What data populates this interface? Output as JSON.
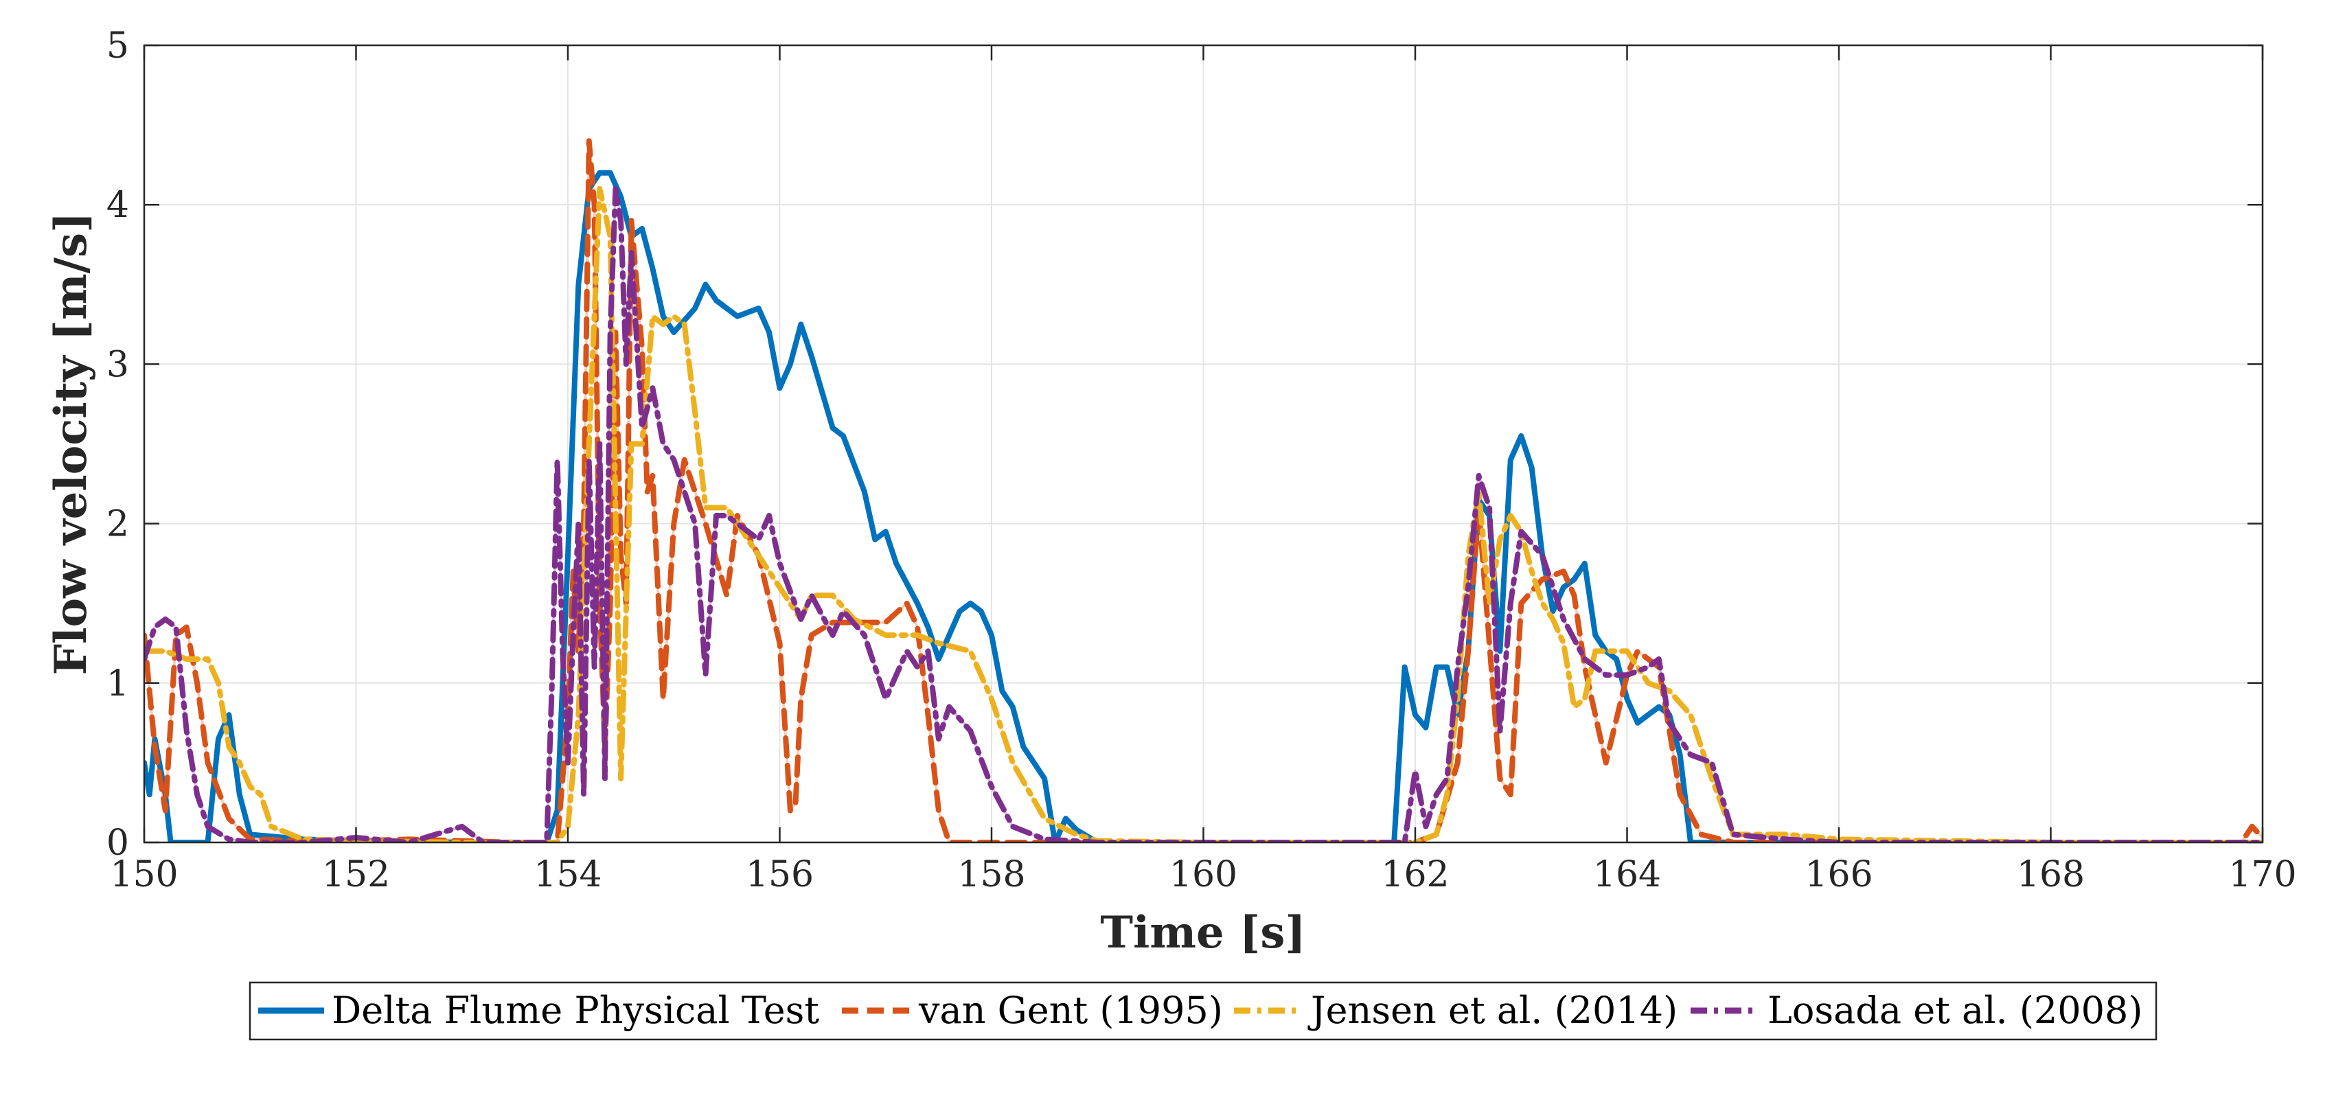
{
  "chart_data": {
    "type": "line",
    "title": "",
    "xlabel": "Time [s]",
    "ylabel": "Flow velocity [m/s]",
    "xlim": [
      150,
      170
    ],
    "ylim": [
      0,
      5
    ],
    "xticks": [
      150,
      152,
      154,
      156,
      158,
      160,
      162,
      164,
      166,
      168,
      170
    ],
    "yticks": [
      0,
      1,
      2,
      3,
      4,
      5
    ],
    "grid": true,
    "legend_position": "bottom-outside",
    "series": [
      {
        "name": "Delta Flume Physical Test",
        "color": "#0072BD",
        "dash": "solid",
        "x": [
          150.0,
          150.05,
          150.1,
          150.2,
          150.25,
          150.3,
          150.6,
          150.7,
          150.8,
          150.9,
          151.0,
          151.5,
          152.0,
          153.0,
          153.8,
          153.9,
          154.0,
          154.1,
          154.2,
          154.3,
          154.4,
          154.5,
          154.6,
          154.7,
          154.8,
          154.9,
          155.0,
          155.2,
          155.3,
          155.4,
          155.6,
          155.8,
          155.9,
          156.0,
          156.1,
          156.2,
          156.3,
          156.5,
          156.6,
          156.8,
          156.9,
          157.0,
          157.1,
          157.3,
          157.4,
          157.5,
          157.6,
          157.7,
          157.8,
          157.9,
          158.0,
          158.1,
          158.2,
          158.3,
          158.5,
          158.6,
          158.7,
          158.8,
          159.0,
          160.0,
          161.0,
          161.8,
          161.9,
          162.0,
          162.1,
          162.2,
          162.3,
          162.4,
          162.5,
          162.6,
          162.7,
          162.8,
          162.9,
          163.0,
          163.1,
          163.2,
          163.3,
          163.4,
          163.5,
          163.6,
          163.7,
          163.8,
          163.9,
          164.0,
          164.1,
          164.2,
          164.3,
          164.4,
          164.5,
          164.6,
          164.7,
          164.8,
          165.0,
          166.0,
          168.0,
          170.0
        ],
        "y": [
          0.5,
          0.3,
          0.65,
          0.3,
          0.0,
          0.0,
          0.0,
          0.65,
          0.8,
          0.3,
          0.05,
          0.02,
          0.01,
          0.0,
          0.0,
          0.2,
          1.8,
          3.5,
          4.1,
          4.2,
          4.2,
          4.05,
          3.8,
          3.85,
          3.6,
          3.3,
          3.2,
          3.35,
          3.5,
          3.4,
          3.3,
          3.35,
          3.2,
          2.85,
          3.0,
          3.25,
          3.05,
          2.6,
          2.55,
          2.2,
          1.9,
          1.95,
          1.75,
          1.5,
          1.35,
          1.15,
          1.3,
          1.45,
          1.5,
          1.45,
          1.3,
          0.95,
          0.85,
          0.6,
          0.4,
          0.0,
          0.15,
          0.08,
          0.0,
          0.0,
          0.0,
          0.0,
          1.1,
          0.8,
          0.72,
          1.1,
          1.1,
          0.8,
          1.2,
          2.15,
          2.05,
          1.2,
          2.4,
          2.55,
          2.35,
          1.8,
          1.45,
          1.6,
          1.65,
          1.75,
          1.3,
          1.2,
          1.15,
          0.9,
          0.75,
          0.8,
          0.85,
          0.8,
          0.55,
          0.0,
          0.0,
          0.0,
          0.0,
          0.0,
          0.0,
          0.0
        ]
      },
      {
        "name": "van Gent (1995)",
        "color": "#D95319",
        "dash": "dash",
        "x": [
          150.0,
          150.1,
          150.2,
          150.3,
          150.4,
          150.5,
          150.6,
          150.8,
          151.0,
          151.5,
          152.0,
          152.5,
          153.0,
          153.5,
          153.9,
          154.0,
          154.05,
          154.1,
          154.15,
          154.2,
          154.25,
          154.3,
          154.35,
          154.4,
          154.45,
          154.5,
          154.55,
          154.6,
          154.7,
          154.75,
          154.8,
          154.9,
          155.0,
          155.1,
          155.2,
          155.3,
          155.5,
          155.6,
          155.8,
          156.0,
          156.1,
          156.15,
          156.2,
          156.3,
          156.5,
          156.8,
          157.0,
          157.2,
          157.3,
          157.4,
          157.5,
          157.6,
          157.8,
          158.0,
          158.5,
          159.0,
          160.0,
          161.0,
          162.0,
          162.2,
          162.4,
          162.5,
          162.6,
          162.8,
          162.9,
          163.0,
          163.2,
          163.4,
          163.5,
          163.6,
          163.8,
          164.0,
          164.1,
          164.3,
          164.5,
          164.7,
          165.0,
          166.0,
          168.0,
          169.0,
          169.8,
          169.9,
          170.0
        ],
        "y": [
          1.3,
          0.6,
          0.2,
          1.3,
          1.35,
          1.0,
          0.5,
          0.15,
          0.02,
          0.01,
          0.01,
          0.02,
          0.01,
          0.0,
          0.0,
          0.8,
          1.7,
          1.2,
          2.0,
          4.4,
          4.0,
          1.5,
          0.6,
          1.5,
          3.2,
          1.8,
          1.5,
          3.9,
          3.1,
          2.2,
          2.3,
          0.9,
          2.0,
          2.4,
          2.2,
          2.0,
          1.55,
          2.05,
          1.8,
          1.25,
          0.2,
          0.25,
          0.9,
          1.3,
          1.38,
          1.38,
          1.38,
          1.5,
          1.35,
          0.8,
          0.2,
          0.0,
          0.0,
          0.0,
          0.0,
          0.0,
          0.0,
          0.0,
          0.0,
          0.05,
          0.5,
          1.2,
          2.1,
          0.4,
          0.3,
          1.5,
          1.65,
          1.7,
          1.55,
          1.1,
          0.5,
          1.05,
          1.2,
          1.1,
          0.3,
          0.05,
          0.0,
          0.0,
          0.0,
          0.0,
          0.0,
          0.1,
          0.03
        ]
      },
      {
        "name": "Jensen et al. (2014)",
        "color": "#EDB120",
        "dash": "dashdot",
        "x": [
          150.0,
          150.2,
          150.4,
          150.6,
          150.7,
          150.8,
          150.9,
          151.0,
          151.1,
          151.2,
          151.5,
          152.0,
          153.0,
          153.9,
          154.0,
          154.1,
          154.2,
          154.3,
          154.4,
          154.5,
          154.6,
          154.7,
          154.8,
          154.9,
          155.0,
          155.1,
          155.2,
          155.3,
          155.5,
          155.7,
          156.0,
          156.2,
          156.3,
          156.5,
          156.7,
          157.0,
          157.3,
          157.5,
          157.8,
          158.0,
          158.2,
          158.5,
          158.8,
          159.0,
          160.0,
          162.0,
          162.2,
          162.3,
          162.4,
          162.5,
          162.6,
          162.7,
          162.8,
          162.9,
          163.0,
          163.1,
          163.2,
          163.3,
          163.4,
          163.5,
          163.6,
          163.7,
          163.8,
          164.0,
          164.2,
          164.4,
          164.6,
          164.8,
          165.0,
          165.5,
          166.0,
          168.0,
          170.0
        ],
        "y": [
          1.2,
          1.2,
          1.15,
          1.15,
          1.0,
          0.6,
          0.5,
          0.35,
          0.3,
          0.1,
          0.02,
          0.01,
          0.0,
          0.0,
          0.1,
          0.8,
          2.5,
          4.1,
          3.8,
          0.4,
          2.5,
          2.5,
          3.3,
          3.25,
          3.3,
          3.25,
          2.7,
          2.1,
          2.1,
          1.9,
          1.6,
          1.4,
          1.55,
          1.55,
          1.4,
          1.3,
          1.3,
          1.25,
          1.2,
          0.9,
          0.5,
          0.15,
          0.05,
          0.01,
          0.0,
          0.0,
          0.05,
          0.3,
          0.9,
          1.8,
          2.2,
          1.5,
          1.9,
          2.05,
          1.95,
          1.7,
          1.5,
          1.4,
          1.25,
          0.85,
          0.9,
          1.2,
          1.2,
          1.2,
          1.0,
          0.95,
          0.8,
          0.4,
          0.05,
          0.05,
          0.02,
          0.0,
          0.0
        ]
      },
      {
        "name": "Losada et al. (2008)",
        "color": "#7E2F8E",
        "dash": "dashdot",
        "x": [
          150.0,
          150.1,
          150.2,
          150.3,
          150.4,
          150.5,
          150.6,
          150.8,
          151.0,
          151.5,
          152.0,
          152.5,
          153.0,
          153.2,
          153.5,
          153.8,
          153.85,
          153.9,
          153.95,
          154.0,
          154.05,
          154.1,
          154.15,
          154.2,
          154.25,
          154.3,
          154.35,
          154.4,
          154.45,
          154.5,
          154.55,
          154.6,
          154.7,
          154.8,
          154.9,
          155.0,
          155.2,
          155.3,
          155.4,
          155.5,
          155.6,
          155.8,
          155.9,
          156.0,
          156.2,
          156.3,
          156.5,
          156.6,
          156.8,
          157.0,
          157.2,
          157.3,
          157.4,
          157.5,
          157.6,
          157.8,
          158.0,
          158.2,
          158.5,
          159.0,
          160.0,
          161.0,
          161.9,
          162.0,
          162.1,
          162.2,
          162.3,
          162.4,
          162.5,
          162.6,
          162.7,
          162.8,
          162.9,
          163.0,
          163.2,
          163.4,
          163.6,
          163.8,
          164.0,
          164.2,
          164.3,
          164.4,
          164.6,
          164.8,
          165.0,
          165.5,
          166.0,
          168.0,
          170.0
        ],
        "y": [
          1.15,
          1.35,
          1.4,
          1.35,
          0.7,
          0.3,
          0.1,
          0.02,
          0.0,
          0.0,
          0.03,
          0.0,
          0.1,
          0.0,
          0.0,
          0.0,
          1.0,
          2.4,
          1.2,
          0.5,
          1.3,
          2.0,
          0.3,
          2.4,
          1.1,
          2.5,
          0.4,
          3.2,
          4.1,
          3.9,
          3.0,
          3.7,
          2.6,
          2.85,
          2.5,
          2.4,
          2.0,
          1.05,
          2.05,
          2.05,
          2.0,
          1.9,
          2.05,
          1.75,
          1.4,
          1.55,
          1.3,
          1.45,
          1.3,
          0.9,
          1.2,
          1.1,
          1.2,
          0.65,
          0.85,
          0.7,
          0.35,
          0.1,
          0.02,
          0.0,
          0.0,
          0.0,
          0.0,
          0.45,
          0.1,
          0.3,
          0.4,
          1.1,
          1.6,
          2.3,
          2.1,
          0.7,
          1.5,
          1.95,
          1.8,
          1.4,
          1.15,
          1.05,
          1.05,
          1.1,
          1.15,
          0.75,
          0.55,
          0.5,
          0.05,
          0.02,
          0.0,
          0.0,
          0.0
        ]
      }
    ]
  }
}
